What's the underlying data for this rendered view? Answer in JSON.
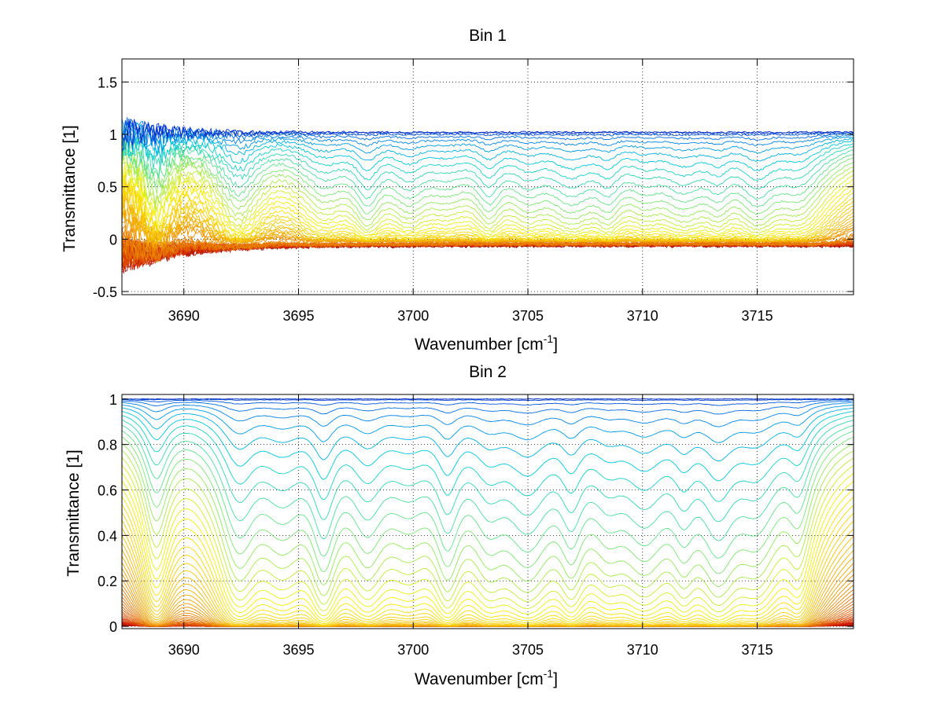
{
  "chart_data": [
    {
      "type": "line",
      "title": "Bin 1",
      "xlabel": "Wavenumber [cm",
      "xlabel_sup": "-1",
      "xlabel_end": "]",
      "ylabel": "Transmittance [1]",
      "xlim": [
        3687.3,
        3719.2
      ],
      "ylim": [
        -0.53,
        1.72
      ],
      "xticks": [
        3690,
        3695,
        3700,
        3705,
        3710,
        3715
      ],
      "yticks": [
        -0.5,
        0,
        0.5,
        1,
        1.5
      ],
      "ytick_labels": [
        "-0.5",
        "0",
        "0.5",
        "1",
        "1.5"
      ],
      "grid": true,
      "series_count": 60,
      "colormap": "jet",
      "lines_left_to_right": [
        3688.8,
        3692.4,
        3696.1,
        3698.0,
        3699.8,
        3701.5,
        3703.3,
        3705.0,
        3706.9,
        3708.5,
        3710.1,
        3711.8,
        3713.3,
        3715.0,
        3716.8
      ],
      "value_ranges": {
        "top_lines": [
          0.98,
          1.1
        ],
        "bottom_lines": [
          -0.08,
          0.05
        ]
      }
    },
    {
      "type": "line",
      "title": "Bin 2",
      "xlabel": "Wavenumber [cm",
      "xlabel_sup": "-1",
      "xlabel_end": "]",
      "ylabel": "Transmittance [1]",
      "xlim": [
        3687.3,
        3719.2
      ],
      "ylim": [
        -0.01,
        1.02
      ],
      "xticks": [
        3690,
        3695,
        3700,
        3705,
        3710,
        3715
      ],
      "yticks": [
        0,
        0.2,
        0.4,
        0.6,
        0.8,
        1
      ],
      "ytick_labels": [
        "0",
        "0.2",
        "0.4",
        "0.6",
        "0.8",
        "1"
      ],
      "grid": true,
      "series_count": 60,
      "colormap": "jet",
      "lines_left_to_right": [
        3688.8,
        3692.4,
        3694.3,
        3696.1,
        3698.0,
        3699.8,
        3701.5,
        3703.3,
        3705.0,
        3706.9,
        3708.5,
        3710.1,
        3711.8,
        3713.3,
        3715.0,
        3716.8
      ],
      "value_ranges": {
        "top_lines": [
          0.99,
          1.01
        ],
        "bottom_lines": [
          0.0,
          0.02
        ]
      }
    }
  ]
}
